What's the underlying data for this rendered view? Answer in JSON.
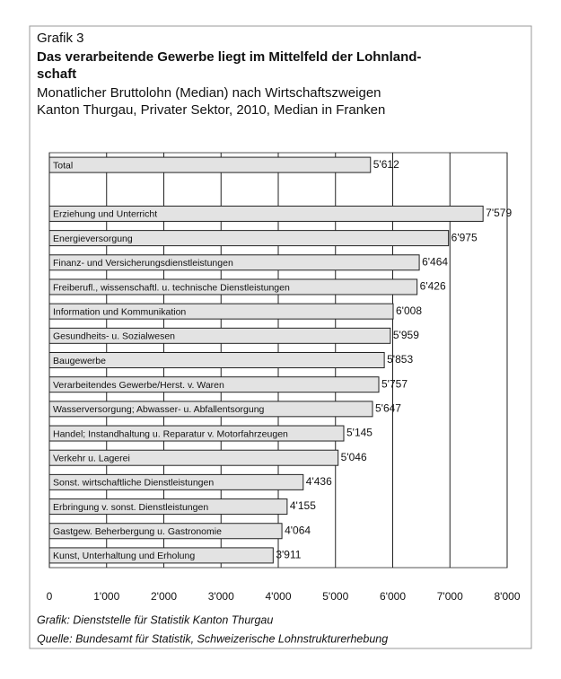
{
  "chart_data": {
    "type": "barh",
    "label": "Grafik 3",
    "title": [
      "Das verarbeitende Gewerbe liegt im Mittelfeld der Lohnland-",
      "schaft"
    ],
    "subtitle": [
      "Monatlicher Bruttolohn (Median) nach Wirtschaftszweigen",
      "Kanton Thurgau, Privater Sektor, 2010, Median in Franken"
    ],
    "categories": [
      "Total",
      null,
      "Erziehung und Unterricht",
      "Energieversorgung",
      "Finanz- und Versicherungsdienstleistungen",
      "Freiberufl., wissenschaftl. u. technische Dienstleistungen",
      "Information und Kommunikation",
      "Gesundheits- u. Sozialwesen",
      "Baugewerbe",
      "Verarbeitendes Gewerbe/Herst. v. Waren",
      "Wasserversorgung; Abwasser- u. Abfallentsorgung",
      "Handel; Instandhaltung u. Reparatur v. Motorfahrzeugen",
      "Verkehr u. Lagerei",
      "Sonst. wirtschaftliche Dienstleistungen",
      "Erbringung v. sonst. Dienstleistungen",
      "Gastgew. Beherbergung u. Gastronomie",
      "Kunst, Unterhaltung und Erholung"
    ],
    "values": [
      5612,
      null,
      7579,
      6975,
      6464,
      6426,
      6008,
      5959,
      5853,
      5757,
      5647,
      5145,
      5046,
      4436,
      4155,
      4064,
      3911
    ],
    "value_labels": [
      "5'612",
      null,
      "7'579",
      "6'975",
      "6'464",
      "6'426",
      "6'008",
      "5'959",
      "5'853",
      "5'757",
      "5'647",
      "5'145",
      "5'046",
      "4'436",
      "4'155",
      "4'064",
      "3'911"
    ],
    "color": "#e3e3e3",
    "xlim": [
      0,
      8000
    ],
    "xticks": [
      0,
      {
        "value": 1000,
        "label": "1'000"
      },
      {
        "value": 2000,
        "label": "2'000"
      },
      {
        "value": 3000,
        "label": "3'000"
      },
      {
        "value": 4000,
        "label": "4'000"
      },
      {
        "value": 5000,
        "label": "5'000"
      },
      {
        "value": 6000,
        "label": "6'000"
      },
      {
        "value": 7000,
        "label": "7'000"
      },
      {
        "value": 8000,
        "label": "8'000"
      }
    ],
    "grid": true,
    "notes": [
      "Grafik: Dienststelle für Statistik Kanton Thurgau",
      "Quelle: Bundesamt für Statistik, Schweizerische Lohnstrukturerhebung"
    ]
  }
}
